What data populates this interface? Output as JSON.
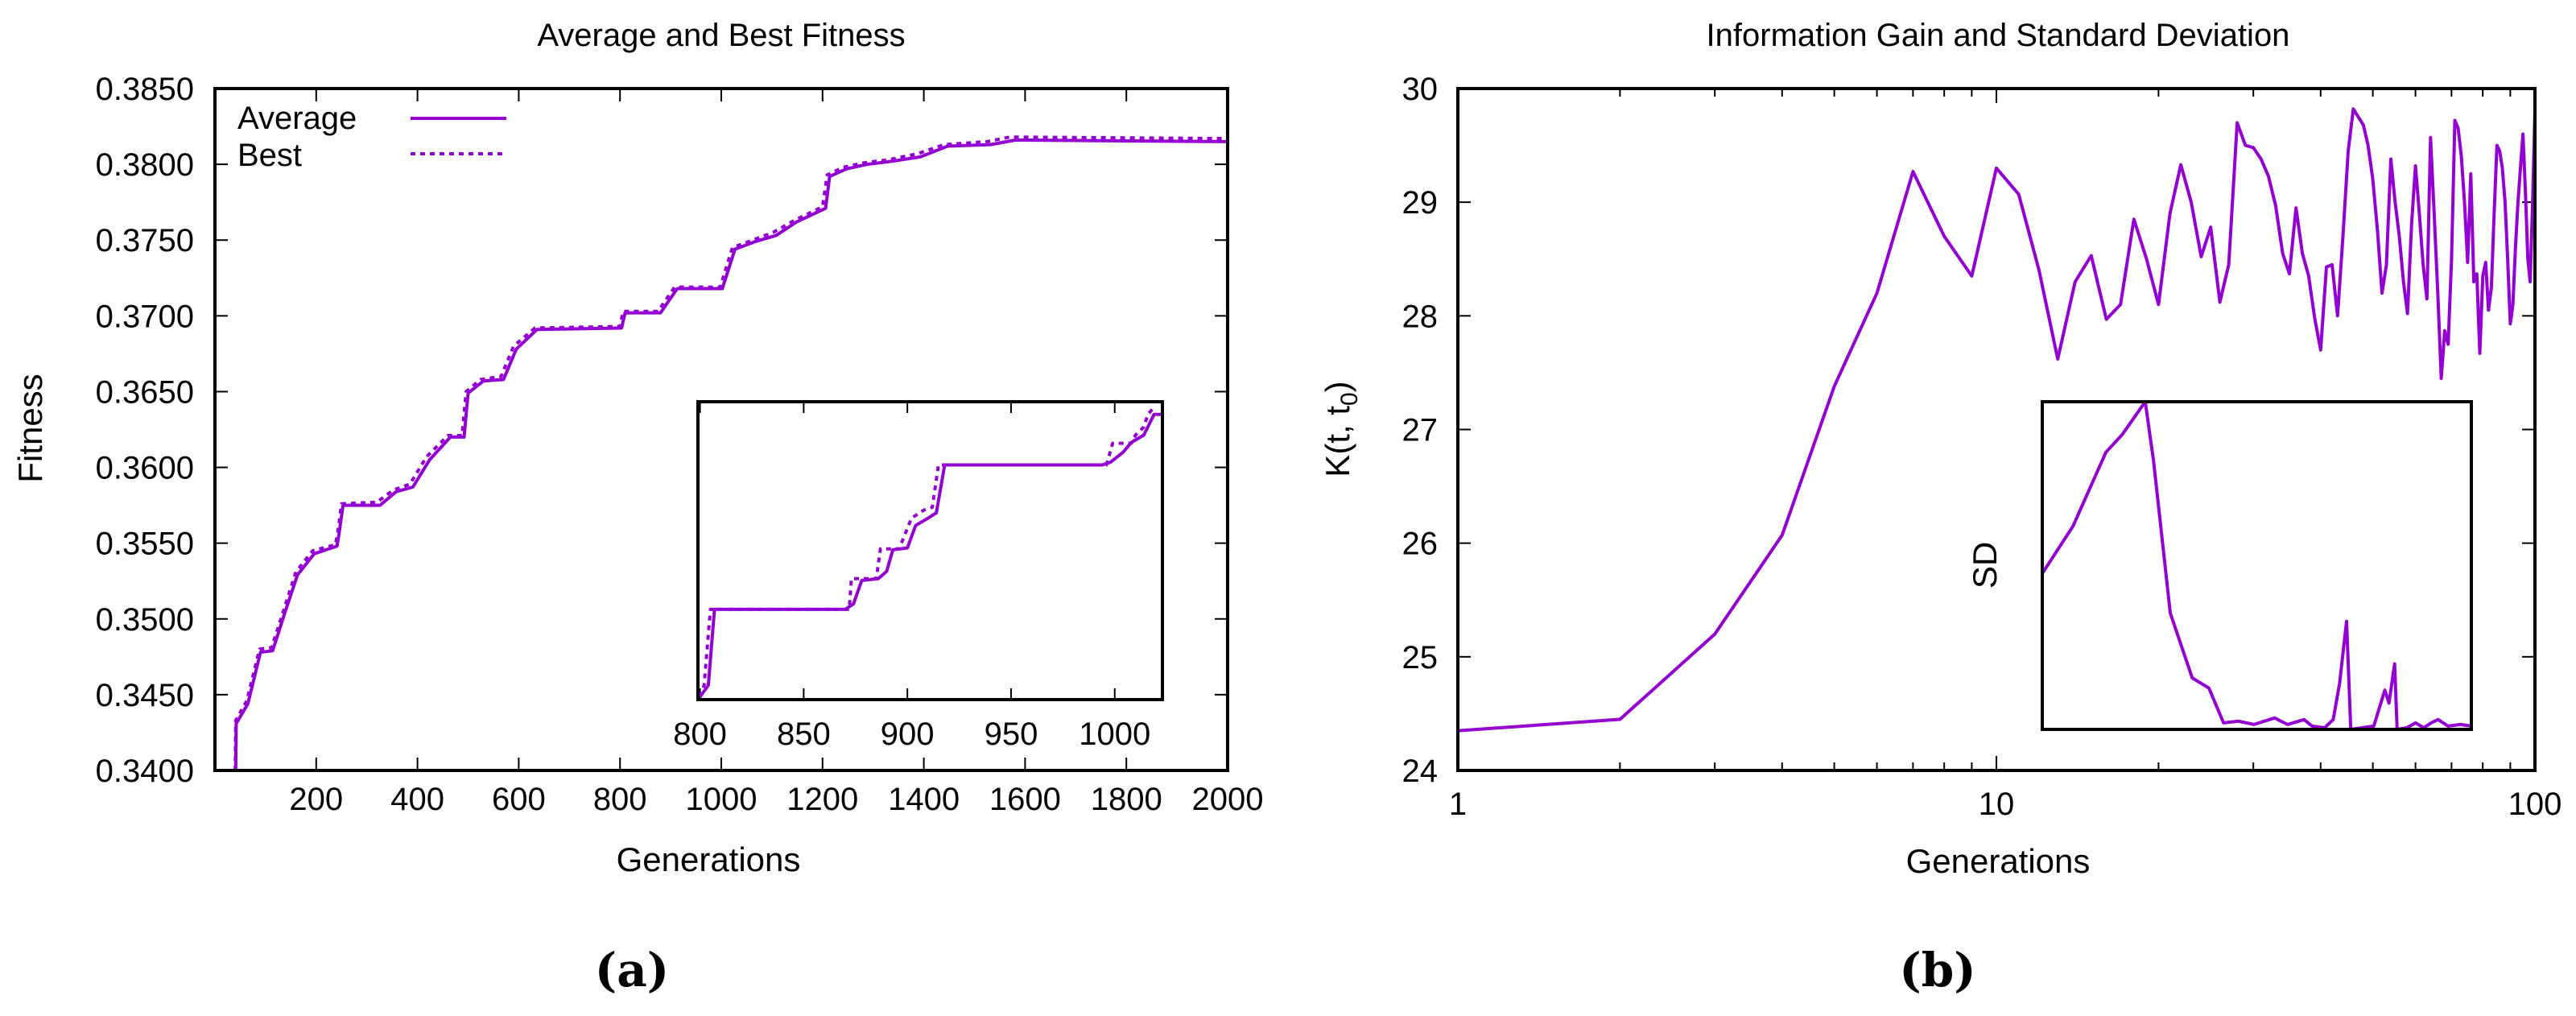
{
  "line_color": "#9400D3",
  "chart_data": [
    {
      "id": "a",
      "panel_label": "(a)",
      "type": "line",
      "title": "Average and Best Fitness",
      "xlabel": "Generations",
      "ylabel": "Fitness",
      "xlim": [
        0,
        2000
      ],
      "ylim": [
        0.34,
        0.385
      ],
      "xticks": [
        "200",
        "400",
        "600",
        "800",
        "1000",
        "1200",
        "1400",
        "1600",
        "1800",
        "2000"
      ],
      "yticks": [
        "0.3400",
        "0.3450",
        "0.3500",
        "0.3550",
        "0.3600",
        "0.3650",
        "0.3700",
        "0.3750",
        "0.3800",
        "0.3850"
      ],
      "legend_position": "top-left",
      "grid": false,
      "series": [
        {
          "name": "Average",
          "style": "solid",
          "x": [
            41,
            42,
            65,
            90,
            114,
            139,
            163,
            196,
            241,
            245,
            253,
            326,
            358,
            391,
            424,
            465,
            492,
            500,
            530,
            570,
            595,
            636,
            803,
            810,
            880,
            913,
            1002,
            1027,
            1067,
            1108,
            1149,
            1206,
            1214,
            1247,
            1288,
            1337,
            1394,
            1447,
            1532,
            1581,
            2000
          ],
          "y": [
            0.34,
            0.3431,
            0.3444,
            0.3478,
            0.3479,
            0.3505,
            0.3529,
            0.3543,
            0.3548,
            0.3556,
            0.3575,
            0.3575,
            0.3584,
            0.3587,
            0.3605,
            0.362,
            0.362,
            0.3649,
            0.3657,
            0.3658,
            0.3678,
            0.3691,
            0.3692,
            0.3702,
            0.3702,
            0.3718,
            0.3718,
            0.3744,
            0.3749,
            0.3753,
            0.3762,
            0.3771,
            0.3792,
            0.3797,
            0.38,
            0.3802,
            0.3805,
            0.3812,
            0.3813,
            0.3816,
            0.3815
          ]
        },
        {
          "name": "Best",
          "style": "dotted",
          "x": [
            40,
            41,
            63,
            88,
            112,
            137,
            160,
            193,
            238,
            243,
            250,
            320,
            352,
            385,
            418,
            460,
            488,
            496,
            525,
            565,
            590,
            632,
            800,
            806,
            875,
            908,
            998,
            1022,
            1062,
            1102,
            1144,
            1200,
            1209,
            1240,
            1282,
            1330,
            1388,
            1440,
            1525,
            1570,
            2000
          ],
          "y": [
            0.34,
            0.3433,
            0.3446,
            0.348,
            0.3481,
            0.3507,
            0.3531,
            0.3545,
            0.3549,
            0.3558,
            0.3576,
            0.3577,
            0.3585,
            0.3589,
            0.3607,
            0.3621,
            0.3621,
            0.365,
            0.3658,
            0.366,
            0.368,
            0.3692,
            0.3693,
            0.3703,
            0.3703,
            0.3719,
            0.3719,
            0.3745,
            0.375,
            0.3755,
            0.3763,
            0.3772,
            0.3793,
            0.3798,
            0.3801,
            0.3803,
            0.3807,
            0.3813,
            0.3815,
            0.3818,
            0.3817
          ]
        }
      ],
      "inset": {
        "type": "line",
        "xlim": [
          799,
          1023
        ],
        "ylim": [
          0.3692,
          0.3725
        ],
        "xticks": [
          "800",
          "850",
          "900",
          "950",
          "1000"
        ],
        "series": [
          {
            "name": "Average",
            "style": "solid",
            "x": [
              800,
              804,
              807,
              870,
              874,
              878,
              886,
              890,
              893,
              900,
              904,
              910,
              914,
              918,
              994,
              998,
              1004,
              1008,
              1014,
              1019,
              1023
            ],
            "y": [
              0.36923,
              0.36936,
              0.3702,
              0.3702,
              0.37026,
              0.37052,
              0.37054,
              0.37062,
              0.37086,
              0.37088,
              0.37113,
              0.37121,
              0.37127,
              0.3718,
              0.3718,
              0.37183,
              0.37194,
              0.37205,
              0.37213,
              0.37236,
              0.37236
            ]
          },
          {
            "name": "Best",
            "style": "dotted",
            "x": [
              800,
              802,
              805,
              872,
              873,
              885,
              887,
              896,
              902,
              908,
              912,
              915,
              996,
              999,
              1008,
              1010,
              1014,
              1016,
              1019
            ],
            "y": [
              0.36923,
              0.36936,
              0.3702,
              0.3702,
              0.37054,
              0.37054,
              0.37087,
              0.37087,
              0.37121,
              0.3713,
              0.37133,
              0.3718,
              0.3718,
              0.37204,
              0.37204,
              0.37213,
              0.37222,
              0.37236,
              0.37244
            ]
          }
        ]
      }
    },
    {
      "id": "b",
      "panel_label": "(b)",
      "type": "line",
      "title": "Information Gain and Standard Deviation",
      "xlabel": "Generations",
      "ylabel": "K(t, t",
      "ylabel_sub": "0",
      "ylabel_end": ")",
      "xscale": "log",
      "xlim": [
        1,
        100
      ],
      "ylim": [
        24,
        30
      ],
      "xticks": [
        "1",
        "10",
        "100"
      ],
      "yticks": [
        "24",
        "25",
        "26",
        "27",
        "28",
        "29",
        "30"
      ],
      "grid": false,
      "series": [
        {
          "x": [
            1,
            2,
            3,
            4,
            5,
            6,
            7,
            8,
            9,
            10,
            11,
            12,
            13,
            14,
            15,
            16,
            17,
            18,
            19,
            20,
            21,
            22,
            23,
            24,
            25,
            26,
            27,
            28,
            29,
            30,
            31,
            32,
            33,
            34,
            35,
            36,
            37,
            38,
            39,
            40,
            41,
            42,
            43,
            44,
            45,
            46,
            47,
            48,
            49,
            50,
            51,
            52,
            53,
            54,
            55,
            56,
            57,
            58,
            59,
            60,
            61,
            62,
            63,
            64,
            65,
            66,
            67,
            68,
            69,
            70,
            71,
            72,
            73,
            74,
            75,
            76,
            77,
            78,
            79,
            80,
            81,
            82,
            83,
            84,
            85,
            86,
            87,
            88,
            89,
            90,
            91,
            92,
            93,
            94,
            95,
            96,
            97,
            98,
            99,
            100
          ],
          "y": [
            24.35,
            24.45,
            25.2,
            26.07,
            27.38,
            28.2,
            29.27,
            28.7,
            28.35,
            29.3,
            29.07,
            28.4,
            27.62,
            28.3,
            28.53,
            27.97,
            28.1,
            28.85,
            28.5,
            28.1,
            28.9,
            29.33,
            29.0,
            28.52,
            28.78,
            28.12,
            28.45,
            29.7,
            29.5,
            29.48,
            29.38,
            29.23,
            28.97,
            28.55,
            28.37,
            28.95,
            28.55,
            28.35,
            27.98,
            27.7,
            28.43,
            28.45,
            28.0,
            28.7,
            29.45,
            29.82,
            29.75,
            29.68,
            29.5,
            29.2,
            28.75,
            28.2,
            28.45,
            29.38,
            29.0,
            28.7,
            28.3,
            28.02,
            28.8,
            29.32,
            28.9,
            28.45,
            28.15,
            29.57,
            28.9,
            28.2,
            27.45,
            27.87,
            27.75,
            28.5,
            29.72,
            29.65,
            29.4,
            29.0,
            28.47,
            29.25,
            28.3,
            28.37,
            27.67,
            28.35,
            28.47,
            28.05,
            28.25,
            28.9,
            29.5,
            29.45,
            29.3,
            29.0,
            28.5,
            27.93,
            28.1,
            28.6,
            29.0,
            29.3,
            29.6,
            29.1,
            28.5,
            28.3,
            29.0,
            29.8
          ]
        }
      ],
      "inset": {
        "type": "line",
        "ylabel": "SD",
        "xscale": "log",
        "xlim": [
          1,
          100
        ],
        "ylim_fraction": [
          0,
          1
        ],
        "series": [
          {
            "x": [
              1,
              1.39,
              1.98,
              2.36,
              3.02,
              3.3,
              3.95,
              5.0,
              5.98,
              7.0,
              8.2,
              9.7,
              12.1,
              13.9,
              16.6,
              18.1,
              20.7,
              22.7,
              24.3,
              26.2,
              27.4,
              35.1,
              39.5,
              41.3,
              43.9,
              45.1,
              50,
              55,
              60,
              65,
              70,
              78,
              89,
              100
            ],
            "y": [
              0.476,
              0.62,
              0.846,
              0.9,
              1.0,
              0.82,
              0.355,
              0.157,
              0.126,
              0.02,
              0.025,
              0.015,
              0.035,
              0.015,
              0.03,
              0.01,
              0.005,
              0.03,
              0.14,
              0.33,
              0.0,
              0.01,
              0.12,
              0.08,
              0.2,
              0.0,
              0.005,
              0.02,
              0.005,
              0.02,
              0.03,
              0.01,
              0.015,
              0.01
            ]
          }
        ]
      }
    }
  ]
}
